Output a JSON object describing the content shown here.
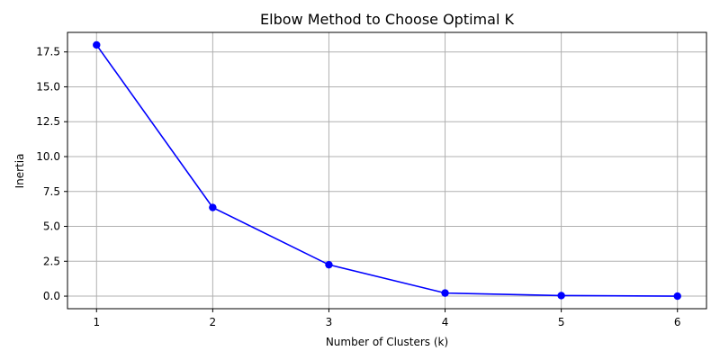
{
  "chart_data": {
    "type": "line",
    "title": "Elbow Method to Choose Optimal K",
    "xlabel": "Number of Clusters (k)",
    "ylabel": "Inertia",
    "x": [
      1,
      2,
      3,
      4,
      5,
      6
    ],
    "series": [
      {
        "values": [
          18.0,
          6.35,
          2.25,
          0.22,
          0.04,
          0.0
        ],
        "color": "#0000ff",
        "marker": "circle"
      }
    ],
    "xticks": [
      1,
      2,
      3,
      4,
      5,
      6
    ],
    "xtick_labels": [
      "1",
      "2",
      "3",
      "4",
      "5",
      "6"
    ],
    "yticks": [
      0.0,
      2.5,
      5.0,
      7.5,
      10.0,
      12.5,
      15.0,
      17.5
    ],
    "ytick_labels": [
      "0.0",
      "2.5",
      "5.0",
      "7.5",
      "10.0",
      "12.5",
      "15.0",
      "17.5"
    ],
    "xlim": [
      0.75,
      6.25
    ],
    "ylim": [
      -0.9,
      18.9
    ],
    "grid": true,
    "grid_color": "#b0b0b0",
    "axes_color": "#000000"
  }
}
